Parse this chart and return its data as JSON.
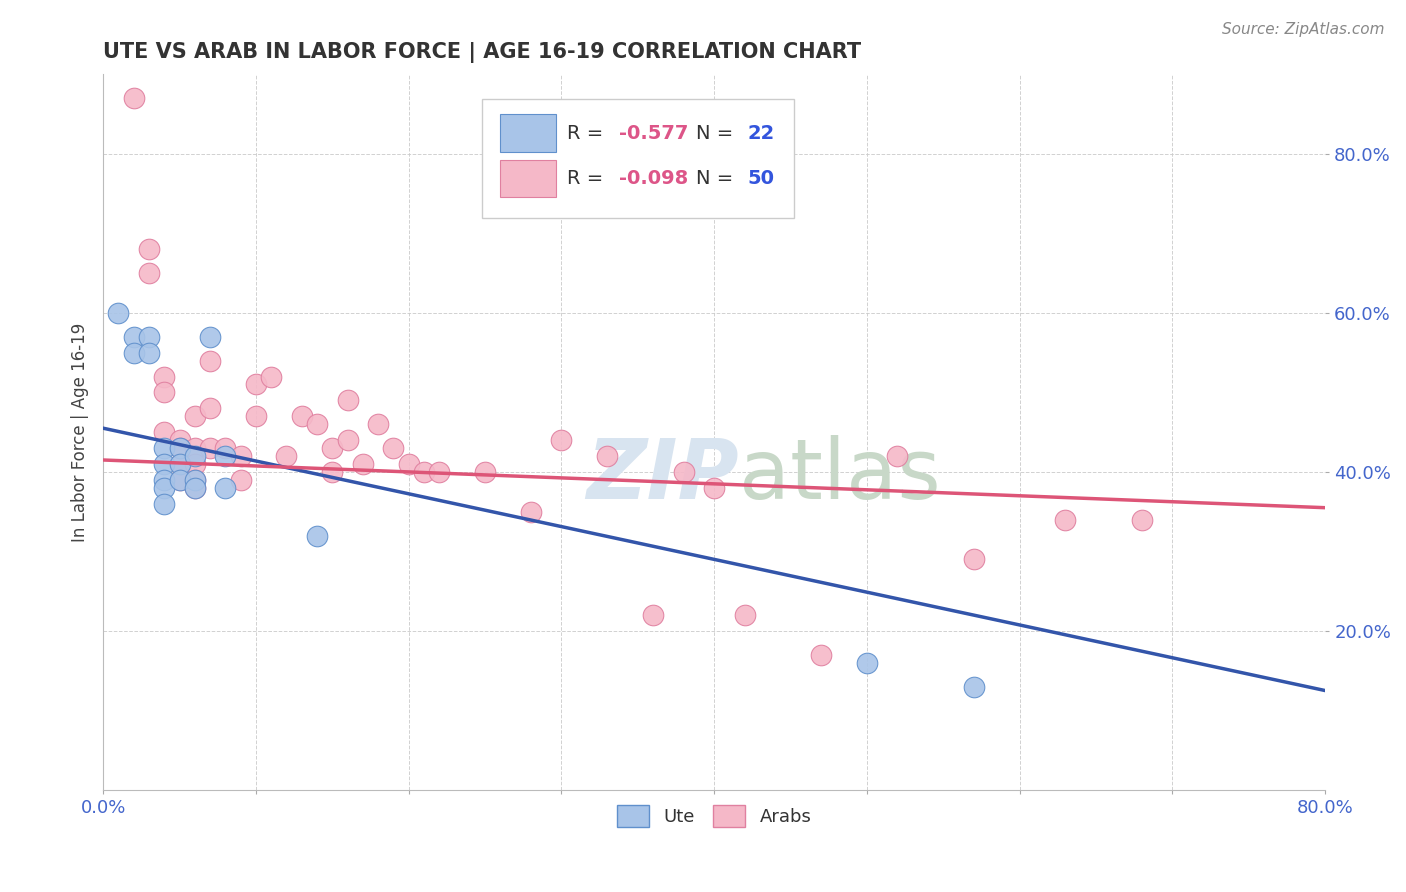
{
  "title": "UTE VS ARAB IN LABOR FORCE | AGE 16-19 CORRELATION CHART",
  "source": "Source: ZipAtlas.com",
  "ylabel": "In Labor Force | Age 16-19",
  "xlim": [
    0.0,
    0.8
  ],
  "ylim": [
    0.0,
    0.9
  ],
  "xtick_positions": [
    0.0,
    0.1,
    0.2,
    0.3,
    0.4,
    0.5,
    0.6,
    0.7,
    0.8
  ],
  "xtick_labels_show": {
    "0.0": "0.0%",
    "0.80": "80.0%"
  },
  "ytick_positions": [
    0.2,
    0.4,
    0.6,
    0.8
  ],
  "ytick_labels": [
    "20.0%",
    "40.0%",
    "60.0%",
    "80.0%"
  ],
  "ute_R": -0.577,
  "ute_N": 22,
  "arab_R": -0.098,
  "arab_N": 50,
  "ute_color": "#a8c4e8",
  "arab_color": "#f5b8c8",
  "ute_edge_color": "#6090cc",
  "arab_edge_color": "#e080a0",
  "ute_line_color": "#3355aa",
  "arab_line_color": "#dd5577",
  "r_value_color": "#dd5588",
  "n_value_color": "#3355dd",
  "legend_text_color": "#333333",
  "tick_color": "#4466cc",
  "watermark_color": "#d8e4f0",
  "ute_x": [
    0.01,
    0.02,
    0.02,
    0.03,
    0.03,
    0.04,
    0.04,
    0.04,
    0.04,
    0.04,
    0.05,
    0.05,
    0.05,
    0.06,
    0.06,
    0.06,
    0.07,
    0.08,
    0.08,
    0.14,
    0.5,
    0.57
  ],
  "ute_y": [
    0.6,
    0.57,
    0.55,
    0.57,
    0.55,
    0.43,
    0.41,
    0.39,
    0.38,
    0.36,
    0.43,
    0.41,
    0.39,
    0.42,
    0.39,
    0.38,
    0.57,
    0.42,
    0.38,
    0.32,
    0.16,
    0.13
  ],
  "arab_x": [
    0.02,
    0.03,
    0.03,
    0.04,
    0.04,
    0.04,
    0.05,
    0.05,
    0.05,
    0.05,
    0.06,
    0.06,
    0.06,
    0.06,
    0.06,
    0.07,
    0.07,
    0.07,
    0.08,
    0.09,
    0.09,
    0.1,
    0.1,
    0.11,
    0.12,
    0.13,
    0.14,
    0.15,
    0.15,
    0.16,
    0.16,
    0.17,
    0.18,
    0.19,
    0.2,
    0.21,
    0.22,
    0.25,
    0.28,
    0.3,
    0.33,
    0.36,
    0.38,
    0.4,
    0.42,
    0.47,
    0.52,
    0.57,
    0.63,
    0.68
  ],
  "arab_y": [
    0.87,
    0.68,
    0.65,
    0.52,
    0.5,
    0.45,
    0.44,
    0.43,
    0.41,
    0.39,
    0.47,
    0.43,
    0.41,
    0.39,
    0.38,
    0.54,
    0.48,
    0.43,
    0.43,
    0.42,
    0.39,
    0.51,
    0.47,
    0.52,
    0.42,
    0.47,
    0.46,
    0.43,
    0.4,
    0.49,
    0.44,
    0.41,
    0.46,
    0.43,
    0.41,
    0.4,
    0.4,
    0.4,
    0.35,
    0.44,
    0.42,
    0.22,
    0.4,
    0.38,
    0.22,
    0.17,
    0.42,
    0.29,
    0.34,
    0.34
  ],
  "ute_line_x0": 0.0,
  "ute_line_y0": 0.455,
  "ute_line_x1": 0.8,
  "ute_line_y1": 0.125,
  "arab_line_x0": 0.0,
  "arab_line_y0": 0.415,
  "arab_line_x1": 0.8,
  "arab_line_y1": 0.355
}
